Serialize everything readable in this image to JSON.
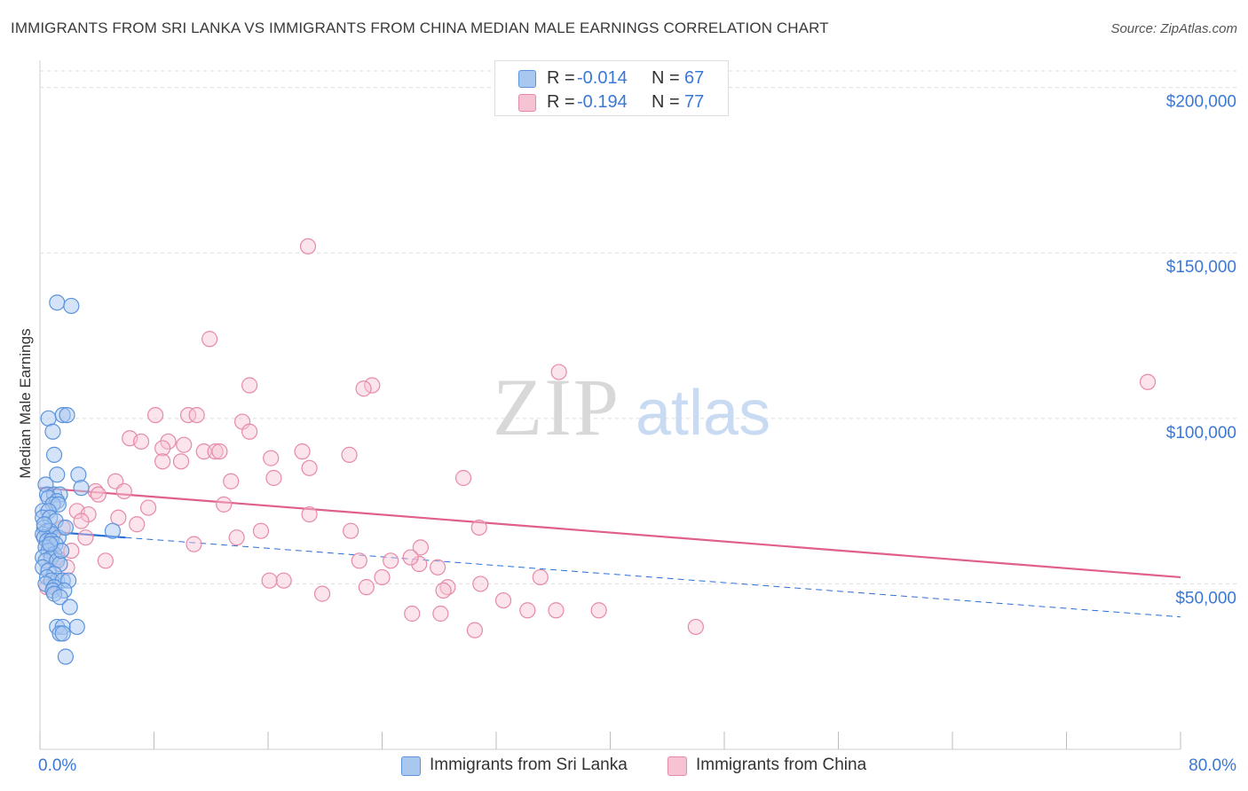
{
  "title": "IMMIGRANTS FROM SRI LANKA VS IMMIGRANTS FROM CHINA MEDIAN MALE EARNINGS CORRELATION CHART",
  "source": "Source: ZipAtlas.com",
  "watermark": {
    "zip": "ZIP",
    "atlas": "atlas"
  },
  "legend": {
    "rows": [
      {
        "r_label": "R =",
        "r_value": "-0.014",
        "n_label": "N =",
        "n_value": "67",
        "color": "#a9c8f0"
      },
      {
        "r_label": "R =",
        "r_value": "-0.194",
        "n_label": "N =",
        "n_value": "77",
        "color": "#f6b8cb"
      }
    ]
  },
  "bottom_legend": [
    {
      "label": "Immigrants from Sri Lanka",
      "color": "#a9c8f0"
    },
    {
      "label": "Immigrants from China",
      "color": "#f6b8cb"
    }
  ],
  "colors": {
    "series1_fill": "#a9c8f0",
    "series1_stroke": "#5b93dc",
    "series1_line": "#2a6fd6",
    "series2_fill": "#f6c3d3",
    "series2_stroke": "#e68aa8",
    "series2_line": "#e0608a",
    "axis_text": "#3a78d8",
    "grid": "#dcdcdc"
  },
  "chart_data": {
    "type": "scatter",
    "xlabel": "",
    "ylabel": "Median Male Earnings",
    "xlim": [
      0,
      80
    ],
    "ylim": [
      0,
      205000
    ],
    "x_tick_labels": [
      "0.0%",
      "80.0%"
    ],
    "y_ticks": [
      50000,
      100000,
      150000,
      200000
    ],
    "y_tick_labels": [
      "$50,000",
      "$100,000",
      "$150,000",
      "$200,000"
    ],
    "grid": "horizontal dashed",
    "series": [
      {
        "name": "Immigrants from Sri Lanka",
        "R": -0.014,
        "N": 67,
        "trend_solid": [
          [
            0,
            66000
          ],
          [
            6,
            64000
          ]
        ],
        "trend_dashed": [
          [
            6,
            64000
          ],
          [
            80,
            40000
          ]
        ],
        "points": [
          [
            1.2,
            135000
          ],
          [
            2.2,
            134000
          ],
          [
            0.6,
            100000
          ],
          [
            1.6,
            101000
          ],
          [
            1.9,
            101000
          ],
          [
            0.9,
            96000
          ],
          [
            1.0,
            89000
          ],
          [
            1.2,
            83000
          ],
          [
            2.7,
            83000
          ],
          [
            0.4,
            80000
          ],
          [
            2.9,
            79000
          ],
          [
            0.5,
            77000
          ],
          [
            1.0,
            77000
          ],
          [
            1.4,
            77000
          ],
          [
            0.6,
            76000
          ],
          [
            1.2,
            75000
          ],
          [
            0.9,
            74000
          ],
          [
            1.3,
            74000
          ],
          [
            0.2,
            72000
          ],
          [
            0.6,
            72000
          ],
          [
            0.2,
            70000
          ],
          [
            0.7,
            70000
          ],
          [
            1.1,
            69000
          ],
          [
            0.3,
            67000
          ],
          [
            0.5,
            66000
          ],
          [
            0.7,
            66000
          ],
          [
            0.2,
            65000
          ],
          [
            0.9,
            65000
          ],
          [
            1.3,
            64000
          ],
          [
            0.3,
            64000
          ],
          [
            0.5,
            63000
          ],
          [
            0.8,
            63000
          ],
          [
            1.1,
            62000
          ],
          [
            0.4,
            61000
          ],
          [
            0.6,
            60000
          ],
          [
            1.0,
            59000
          ],
          [
            0.2,
            58000
          ],
          [
            0.8,
            58000
          ],
          [
            0.4,
            57000
          ],
          [
            1.2,
            57000
          ],
          [
            1.4,
            56000
          ],
          [
            0.2,
            55000
          ],
          [
            0.6,
            54000
          ],
          [
            1.0,
            53000
          ],
          [
            0.5,
            52000
          ],
          [
            1.2,
            51000
          ],
          [
            0.8,
            51000
          ],
          [
            1.6,
            51000
          ],
          [
            2.0,
            51000
          ],
          [
            0.4,
            50000
          ],
          [
            1.0,
            49000
          ],
          [
            0.9,
            48000
          ],
          [
            1.7,
            48000
          ],
          [
            1.0,
            47000
          ],
          [
            1.4,
            46000
          ],
          [
            2.1,
            43000
          ],
          [
            1.2,
            37000
          ],
          [
            1.6,
            37000
          ],
          [
            2.6,
            37000
          ],
          [
            1.4,
            35000
          ],
          [
            1.6,
            35000
          ],
          [
            1.8,
            28000
          ],
          [
            5.1,
            66000
          ],
          [
            0.3,
            68000
          ],
          [
            1.5,
            60000
          ],
          [
            0.7,
            62000
          ],
          [
            1.8,
            67000
          ]
        ]
      },
      {
        "name": "Immigrants from China",
        "R": -0.194,
        "N": 77,
        "trend": [
          [
            0,
            79000
          ],
          [
            80,
            52000
          ]
        ],
        "points": [
          [
            18.8,
            152000
          ],
          [
            11.9,
            124000
          ],
          [
            36.4,
            114000
          ],
          [
            77.7,
            111000
          ],
          [
            23.3,
            110000
          ],
          [
            14.7,
            110000
          ],
          [
            22.7,
            109000
          ],
          [
            8.1,
            101000
          ],
          [
            10.4,
            101000
          ],
          [
            11.0,
            101000
          ],
          [
            14.2,
            99000
          ],
          [
            14.7,
            96000
          ],
          [
            6.3,
            94000
          ],
          [
            7.1,
            93000
          ],
          [
            9.0,
            93000
          ],
          [
            10.1,
            92000
          ],
          [
            8.6,
            91000
          ],
          [
            11.5,
            90000
          ],
          [
            12.3,
            90000
          ],
          [
            12.6,
            90000
          ],
          [
            18.4,
            90000
          ],
          [
            21.7,
            89000
          ],
          [
            16.2,
            88000
          ],
          [
            8.6,
            87000
          ],
          [
            9.9,
            87000
          ],
          [
            18.9,
            85000
          ],
          [
            16.4,
            82000
          ],
          [
            29.7,
            82000
          ],
          [
            13.4,
            81000
          ],
          [
            5.3,
            81000
          ],
          [
            3.9,
            78000
          ],
          [
            5.9,
            78000
          ],
          [
            4.1,
            77000
          ],
          [
            12.9,
            74000
          ],
          [
            7.6,
            73000
          ],
          [
            2.6,
            72000
          ],
          [
            3.4,
            71000
          ],
          [
            18.9,
            71000
          ],
          [
            5.5,
            70000
          ],
          [
            2.9,
            69000
          ],
          [
            6.8,
            68000
          ],
          [
            30.8,
            67000
          ],
          [
            21.8,
            66000
          ],
          [
            15.5,
            66000
          ],
          [
            13.8,
            64000
          ],
          [
            10.8,
            62000
          ],
          [
            26.7,
            61000
          ],
          [
            22.4,
            57000
          ],
          [
            24.6,
            57000
          ],
          [
            26.6,
            56000
          ],
          [
            27.9,
            55000
          ],
          [
            4.6,
            57000
          ],
          [
            17.1,
            51000
          ],
          [
            16.1,
            51000
          ],
          [
            19.8,
            47000
          ],
          [
            22.9,
            49000
          ],
          [
            28.6,
            49000
          ],
          [
            35.1,
            52000
          ],
          [
            30.9,
            50000
          ],
          [
            28.3,
            48000
          ],
          [
            32.5,
            45000
          ],
          [
            34.2,
            42000
          ],
          [
            36.2,
            42000
          ],
          [
            39.2,
            42000
          ],
          [
            26.1,
            41000
          ],
          [
            28.1,
            41000
          ],
          [
            30.5,
            36000
          ],
          [
            46.0,
            37000
          ],
          [
            1.2,
            58000
          ],
          [
            2.2,
            60000
          ],
          [
            0.8,
            62000
          ],
          [
            1.6,
            67000
          ],
          [
            3.2,
            64000
          ],
          [
            0.5,
            49000
          ],
          [
            1.9,
            55000
          ],
          [
            24.0,
            52000
          ],
          [
            26.0,
            58000
          ]
        ]
      }
    ]
  }
}
